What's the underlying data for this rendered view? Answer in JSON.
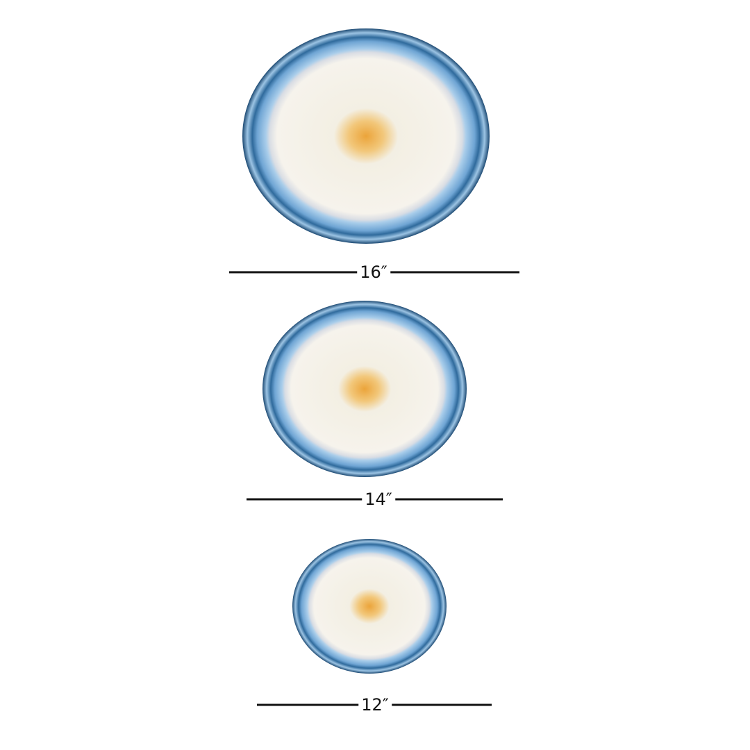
{
  "items": [
    {
      "size_label": "16″"
    },
    {
      "size_label": "14″"
    },
    {
      "size_label": "12″"
    }
  ],
  "colors": {
    "edge": "#1d4a73",
    "band": "#8fc0e6",
    "crystal": "#f4efe4",
    "core": "#eeaa3a",
    "line": "#111111"
  }
}
